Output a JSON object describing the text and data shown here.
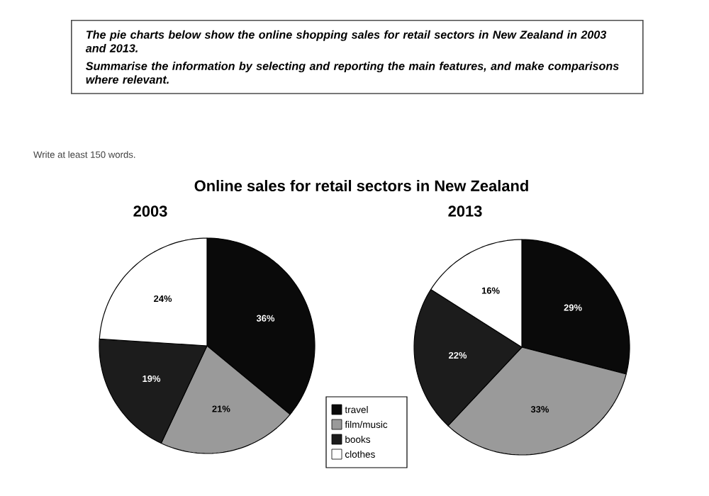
{
  "chart_data": [
    {
      "type": "pie",
      "title": "Online sales for retail sectors in New Zealand",
      "subtitle": "2003",
      "annotations": [
        "The pie charts below show the online shopping sales for retail sectors in New Zealand in 2003 and 2013.",
        "Summarise the information by selecting and reporting the main features, and make comparisons where relevant.",
        "Write at least 150 words."
      ],
      "categories": [
        "travel",
        "film/music",
        "books",
        "clothes"
      ],
      "values": [
        36,
        21,
        19,
        24
      ],
      "colors": [
        "#0a0a0a",
        "#9a9a9a",
        "#1c1c1c",
        "#ffffff"
      ],
      "value_labels": [
        "36%",
        "21%",
        "19%",
        "24%"
      ],
      "legend": "bottom right"
    },
    {
      "type": "pie",
      "title": "2013",
      "categories": [
        null,
        null,
        null,
        null
      ],
      "values": [
        29,
        33,
        22,
        16
      ],
      "colors": [
        "#0a0a0a",
        "#9a9a9a",
        "#1c1c1c",
        "#ffffff"
      ],
      "value_labels": [
        "29%",
        "33%",
        "22%",
        "16%"
      ]
    }
  ]
}
